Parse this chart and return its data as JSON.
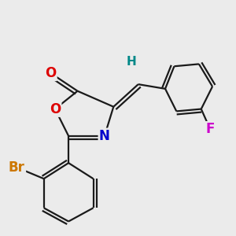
{
  "bg_color": "#ebebeb",
  "bond_color": "#1a1a1a",
  "bond_width": 1.6,
  "dbo": 0.018,
  "atom_colors": {
    "O": "#dd0000",
    "N": "#0000cc",
    "Br": "#cc7700",
    "F": "#cc00cc",
    "H": "#008888"
  },
  "font_size": 11,
  "figsize": [
    3.0,
    3.0
  ],
  "dpi": 100
}
